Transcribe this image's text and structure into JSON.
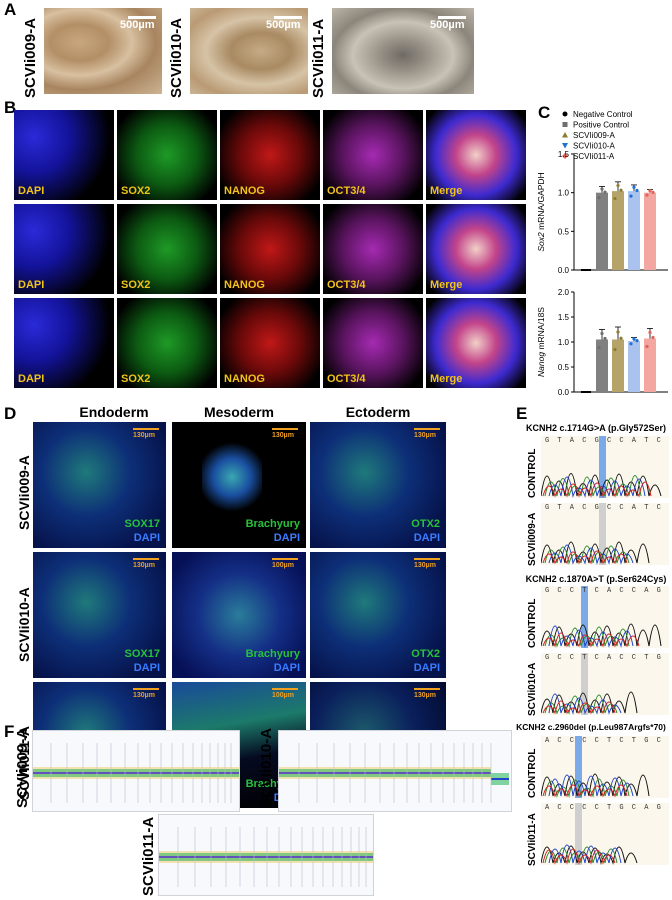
{
  "panels": {
    "A": "A",
    "B": "B",
    "C": "C",
    "D": "D",
    "E": "E",
    "F": "F"
  },
  "panelA": {
    "lines": [
      "SCVIi009-A",
      "SCVIi010-A",
      "SCVIi011-A"
    ],
    "scale": "500µm"
  },
  "panelB": {
    "stains": [
      "DAPI",
      "SOX2",
      "NANOG",
      "OCT3/4",
      "Merge"
    ]
  },
  "panelC": {
    "legend": [
      "Negative Control",
      "Positive Control",
      "SCVIi009-A",
      "SCVIi010-A",
      "SCVIi011-A"
    ],
    "colors": {
      "neg": "#000000",
      "pos": "#808080",
      "i009": "#b5a36a",
      "i010": "#a9c3ee",
      "i011": "#f4a6a0"
    },
    "markerColors": {
      "neg": "#000000",
      "pos": "#6e6e6e",
      "i009": "#8c7c2f",
      "i010": "#1e6fd6",
      "i011": "#e0625c"
    }
  },
  "chart_data": [
    {
      "type": "bar",
      "categories": [
        "Negative Control",
        "Positive Control",
        "SCVIi009-A",
        "SCVIi010-A",
        "SCVIi011-A"
      ],
      "values": [
        0,
        1.0,
        1.02,
        1.02,
        1.0
      ],
      "errors": [
        0,
        0.08,
        0.12,
        0.08,
        0.04
      ],
      "ylabel_italic": "Sox2",
      "ylabel_rest": " mRNA/GAPDH",
      "ylim": [
        0,
        1.5
      ],
      "yticks": [
        "0.0",
        "0.5",
        "1.0",
        "1.5"
      ]
    },
    {
      "type": "bar",
      "categories": [
        "Negative Control",
        "Positive Control",
        "SCVIi009-A",
        "SCVIi010-A",
        "SCVIi011-A"
      ],
      "values": [
        0,
        1.05,
        1.05,
        1.02,
        1.07
      ],
      "errors": [
        0,
        0.2,
        0.25,
        0.07,
        0.2
      ],
      "ylabel_italic": "Nanog",
      "ylabel_rest": " mRNA/18S",
      "ylim": [
        0,
        2.0
      ],
      "yticks": [
        "0.0",
        "0.5",
        "1.0",
        "1.5",
        "2.0"
      ]
    }
  ],
  "panelD": {
    "columns": [
      "Endoderm",
      "Mesoderm",
      "Ectoderm"
    ],
    "rows": [
      "SCVIi009-A",
      "SCVIi010-A",
      "SCVIi011-A"
    ],
    "markers": [
      "SOX17",
      "Brachyury",
      "OTX2"
    ],
    "counter": "DAPI",
    "scales": [
      [
        "130µm",
        "130µm",
        "130µm"
      ],
      [
        "130µm",
        "100µm",
        "130µm"
      ],
      [
        "130µm",
        "100µm",
        "130µm"
      ]
    ]
  },
  "panelE": {
    "variants": [
      {
        "title": "KCNH2 c.1714G>A (p.Gly572Ser)",
        "control_seq": "G T A C G C C A T C G G C A A C A T G",
        "patient_seq": "G T A C G C C A T C G G C A A C A T G",
        "control": "CONTROL",
        "patient": "SCVIi009-A"
      },
      {
        "title": "KCNH2 c.1870A>T (p.Ser624Cys)",
        "control_seq": "G C C T C A C C A G T G T G G G C T T",
        "patient_seq": "G C C T C A C C T G T G G G C T T",
        "control": "CONTROL",
        "patient": "SCVIi010-A"
      },
      {
        "title": "KCNH2 c.2960del (p.Leu987Argfs*70)",
        "control_seq": "A C C C C T C T G C A G G T A T C C C",
        "patient_seq": "A C C C C T G C A G G A T T C C C",
        "control": "CONTROL",
        "patient": "SCVIi011-A"
      }
    ]
  },
  "panelF": {
    "lines": [
      "SCVIi009-A",
      "SCVIi010-A",
      "SCVIi011-A"
    ]
  }
}
